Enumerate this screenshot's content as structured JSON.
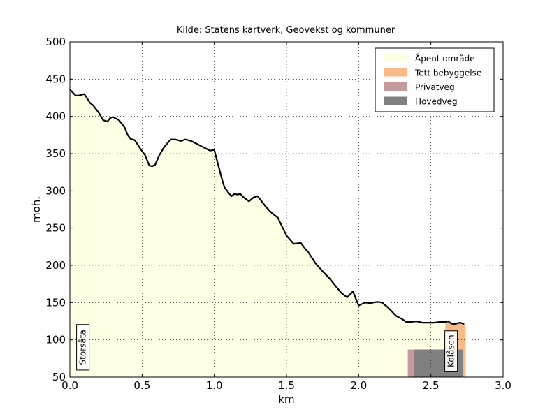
{
  "chart_data": {
    "type": "area",
    "title": "Kilde: Statens kartverk, Geovekst og kommuner",
    "xlabel": "km",
    "ylabel": "moh.",
    "xlim": [
      0.0,
      3.0
    ],
    "ylim": [
      50,
      500
    ],
    "xticks": [
      "0.0",
      "0.5",
      "1.0",
      "1.5",
      "2.0",
      "2.5",
      "3.0"
    ],
    "yticks": [
      "50",
      "100",
      "150",
      "200",
      "250",
      "300",
      "350",
      "400",
      "450",
      "500"
    ],
    "grid": true,
    "legend_position": "top-right",
    "legend": [
      {
        "label": "Åpent område",
        "color": "#ffffe6"
      },
      {
        "label": "Tett bebyggelse",
        "color": "#f9ba87"
      },
      {
        "label": "Privatveg",
        "color": "#c49c9c"
      },
      {
        "label": "Hovedveg",
        "color": "#808080"
      }
    ],
    "profile": {
      "x": [
        0.0,
        0.02,
        0.04,
        0.06,
        0.1,
        0.14,
        0.16,
        0.2,
        0.23,
        0.26,
        0.28,
        0.3,
        0.34,
        0.36,
        0.38,
        0.4,
        0.42,
        0.45,
        0.47,
        0.49,
        0.52,
        0.55,
        0.57,
        0.59,
        0.62,
        0.65,
        0.68,
        0.7,
        0.73,
        0.77,
        0.8,
        0.84,
        0.88,
        0.9,
        0.94,
        0.97,
        1.0,
        1.02,
        1.05,
        1.07,
        1.1,
        1.12,
        1.14,
        1.16,
        1.18,
        1.2,
        1.22,
        1.24,
        1.27,
        1.3,
        1.34,
        1.36,
        1.38,
        1.4,
        1.44,
        1.46,
        1.5,
        1.55,
        1.6,
        1.63,
        1.65,
        1.68,
        1.7,
        1.75,
        1.8,
        1.85,
        1.88,
        1.92,
        1.96,
        2.0,
        2.02,
        2.05,
        2.08,
        2.1,
        2.13,
        2.16,
        2.18,
        2.2,
        2.22,
        2.24,
        2.26,
        2.3,
        2.33,
        2.36,
        2.4,
        2.44,
        2.48,
        2.52,
        2.56,
        2.6,
        2.62,
        2.64,
        2.66,
        2.7,
        2.72,
        2.73
      ],
      "y": [
        436,
        432,
        428,
        428,
        430,
        418,
        415,
        405,
        395,
        393,
        398,
        399,
        395,
        390,
        385,
        375,
        370,
        368,
        362,
        356,
        348,
        334,
        333,
        335,
        348,
        358,
        365,
        369,
        369,
        367,
        369,
        367,
        363,
        361,
        357,
        354,
        355,
        340,
        318,
        305,
        297,
        293,
        296,
        295,
        296,
        292,
        289,
        286,
        291,
        293,
        283,
        278,
        274,
        270,
        264,
        256,
        240,
        229,
        230,
        222,
        218,
        209,
        203,
        192,
        182,
        170,
        163,
        157,
        165,
        146,
        148,
        150,
        149,
        150,
        151,
        150,
        147,
        144,
        140,
        136,
        132,
        128,
        124,
        124,
        125,
        123,
        123,
        123,
        124,
        124,
        125,
        122,
        121,
        123,
        122,
        121
      ]
    },
    "landuse": [
      {
        "type": "Åpent område",
        "x0": 0.0,
        "x1": 2.6,
        "color": "#ffffe6",
        "fill_under_profile": true
      },
      {
        "type": "Tett bebyggelse",
        "x0": 2.6,
        "x1": 2.74,
        "color": "#f9ba87",
        "fill_under_profile": true
      },
      {
        "type": "Privatveg",
        "x0": 2.34,
        "x1": 2.38,
        "color": "#c49c9c",
        "top": 87
      },
      {
        "type": "Hovedveg",
        "x0": 2.38,
        "x1": 2.72,
        "color": "#808080",
        "top": 87
      }
    ],
    "places": [
      {
        "name": "Storsåta",
        "x": 0.09,
        "y": 90
      },
      {
        "name": "Kolåsen",
        "x": 2.64,
        "y": 85
      }
    ]
  }
}
